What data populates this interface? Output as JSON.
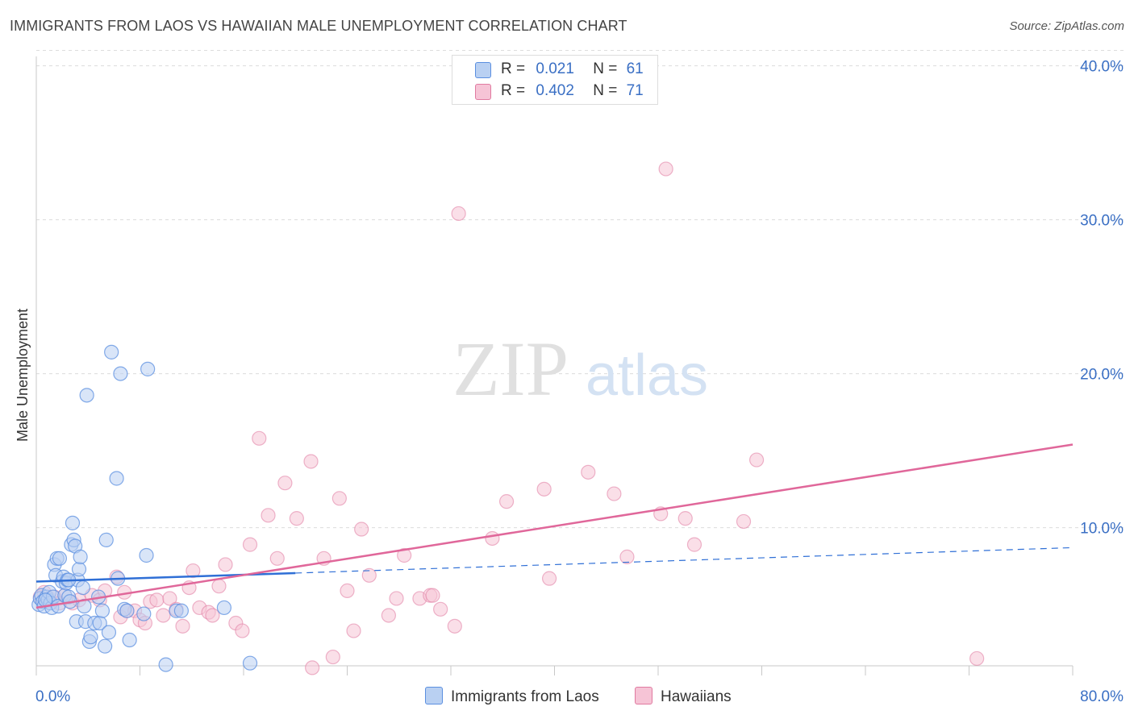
{
  "title": "IMMIGRANTS FROM LAOS VS HAWAIIAN MALE UNEMPLOYMENT CORRELATION CHART",
  "source": "Source: ZipAtlas.com",
  "watermark": {
    "zip": "ZIP",
    "atlas": "atlas"
  },
  "legend_top": {
    "rows": [
      {
        "r_label": "R =",
        "r_value": "0.021",
        "n_label": "N =",
        "n_value": "61"
      },
      {
        "r_label": "R =",
        "r_value": "0.402",
        "n_label": "N =",
        "n_value": "71"
      }
    ]
  },
  "legend_bottom": {
    "series1": "Immigrants from Laos",
    "series2": "Hawaiians"
  },
  "axis": {
    "x_min_label": "0.0%",
    "x_max_label": "80.0%",
    "ylabel": "Male Unemployment"
  },
  "colors": {
    "blue": "#5b8fe0",
    "blue_fill": "#b9d0f2",
    "pink": "#e07aa0",
    "pink_fill": "#f6c4d6",
    "blue_line": "#2f6fd6",
    "pink_line": "#e0679a",
    "tick_text": "#3a6fc4"
  },
  "chart_data": {
    "type": "scatter",
    "xlim": [
      0,
      80
    ],
    "ylim": [
      0,
      42
    ],
    "y_ticks": [
      10,
      20,
      30,
      40
    ],
    "y_tick_labels": [
      "10.0%",
      "20.0%",
      "30.0%",
      "40.0%"
    ],
    "x_tick_labels": [
      "0.0%",
      "80.0%"
    ],
    "grid": true,
    "legend_position": "top-center",
    "series": [
      {
        "name": "Immigrants from Laos",
        "r": 0.021,
        "n": 61,
        "trend": {
          "x0": 0,
          "y0": 6.5,
          "x1": 80,
          "y1": 8.7,
          "solid_until": 20
        },
        "points": [
          [
            0.2,
            5.0
          ],
          [
            0.3,
            5.4
          ],
          [
            0.4,
            5.6
          ],
          [
            0.5,
            5.2
          ],
          [
            0.6,
            4.9
          ],
          [
            0.8,
            5.5
          ],
          [
            0.9,
            5.3
          ],
          [
            1.0,
            5.8
          ],
          [
            1.1,
            5.1
          ],
          [
            1.2,
            4.8
          ],
          [
            1.3,
            5.5
          ],
          [
            1.4,
            7.6
          ],
          [
            1.5,
            6.9
          ],
          [
            1.6,
            8.0
          ],
          [
            1.7,
            4.9
          ],
          [
            1.8,
            8.0
          ],
          [
            2.0,
            6.5
          ],
          [
            2.1,
            6.8
          ],
          [
            2.2,
            5.6
          ],
          [
            2.3,
            6.4
          ],
          [
            2.4,
            6.6
          ],
          [
            2.5,
            5.5
          ],
          [
            2.6,
            5.2
          ],
          [
            2.7,
            8.9
          ],
          [
            2.8,
            10.3
          ],
          [
            2.9,
            9.2
          ],
          [
            3.0,
            8.8
          ],
          [
            3.1,
            3.9
          ],
          [
            3.2,
            6.6
          ],
          [
            3.3,
            7.3
          ],
          [
            3.4,
            8.1
          ],
          [
            3.6,
            6.1
          ],
          [
            3.7,
            4.9
          ],
          [
            3.8,
            3.9
          ],
          [
            3.9,
            18.6
          ],
          [
            4.1,
            2.6
          ],
          [
            4.2,
            2.9
          ],
          [
            4.5,
            3.8
          ],
          [
            4.8,
            5.5
          ],
          [
            4.9,
            3.8
          ],
          [
            5.1,
            4.6
          ],
          [
            5.3,
            2.3
          ],
          [
            5.4,
            9.2
          ],
          [
            5.6,
            3.2
          ],
          [
            5.8,
            21.4
          ],
          [
            6.3,
            6.7
          ],
          [
            6.2,
            13.2
          ],
          [
            6.5,
            20.0
          ],
          [
            6.8,
            4.7
          ],
          [
            7.0,
            4.6
          ],
          [
            7.2,
            2.7
          ],
          [
            8.3,
            4.4
          ],
          [
            8.5,
            8.2
          ],
          [
            8.6,
            20.3
          ],
          [
            10.0,
            1.1
          ],
          [
            10.8,
            4.6
          ],
          [
            11.2,
            4.6
          ],
          [
            14.5,
            4.8
          ],
          [
            16.5,
            1.2
          ],
          [
            2.5,
            6.6
          ],
          [
            0.7,
            5.3
          ]
        ]
      },
      {
        "name": "Hawaiians",
        "r": 0.402,
        "n": 71,
        "trend": {
          "x0": 0,
          "y0": 4.8,
          "x1": 80,
          "y1": 15.4
        },
        "points": [
          [
            0.3,
            5.5
          ],
          [
            0.6,
            5.8
          ],
          [
            1.0,
            5.4
          ],
          [
            1.4,
            5.5
          ],
          [
            1.8,
            5.1
          ],
          [
            2.2,
            5.6
          ],
          [
            2.8,
            5.1
          ],
          [
            3.3,
            5.3
          ],
          [
            4.3,
            5.6
          ],
          [
            4.9,
            5.3
          ],
          [
            5.3,
            5.9
          ],
          [
            6.2,
            6.8
          ],
          [
            6.5,
            4.2
          ],
          [
            6.8,
            5.8
          ],
          [
            7.0,
            4.6
          ],
          [
            7.6,
            4.6
          ],
          [
            8.0,
            4.0
          ],
          [
            8.4,
            3.8
          ],
          [
            8.8,
            5.2
          ],
          [
            9.3,
            5.3
          ],
          [
            9.8,
            4.3
          ],
          [
            10.3,
            5.4
          ],
          [
            10.8,
            4.7
          ],
          [
            11.3,
            3.6
          ],
          [
            11.8,
            6.1
          ],
          [
            12.1,
            7.2
          ],
          [
            12.6,
            4.8
          ],
          [
            13.3,
            4.5
          ],
          [
            13.6,
            4.3
          ],
          [
            14.1,
            6.2
          ],
          [
            14.6,
            7.6
          ],
          [
            15.4,
            3.8
          ],
          [
            15.9,
            3.3
          ],
          [
            16.5,
            8.9
          ],
          [
            17.2,
            15.8
          ],
          [
            17.9,
            10.8
          ],
          [
            18.6,
            8.0
          ],
          [
            19.2,
            12.9
          ],
          [
            20.1,
            10.6
          ],
          [
            21.2,
            14.3
          ],
          [
            21.3,
            0.9
          ],
          [
            22.2,
            8.0
          ],
          [
            22.9,
            1.6
          ],
          [
            23.4,
            11.9
          ],
          [
            24.0,
            5.9
          ],
          [
            24.5,
            3.3
          ],
          [
            25.1,
            9.9
          ],
          [
            25.7,
            6.9
          ],
          [
            27.2,
            4.3
          ],
          [
            27.8,
            5.4
          ],
          [
            28.4,
            8.2
          ],
          [
            29.6,
            5.4
          ],
          [
            30.4,
            5.6
          ],
          [
            30.6,
            5.6
          ],
          [
            31.2,
            4.7
          ],
          [
            32.6,
            30.4
          ],
          [
            32.3,
            3.6
          ],
          [
            35.2,
            9.3
          ],
          [
            36.3,
            11.7
          ],
          [
            39.2,
            12.5
          ],
          [
            39.6,
            6.7
          ],
          [
            42.6,
            13.6
          ],
          [
            44.6,
            12.2
          ],
          [
            45.6,
            8.1
          ],
          [
            48.2,
            10.9
          ],
          [
            48.6,
            33.3
          ],
          [
            50.1,
            10.6
          ],
          [
            50.8,
            8.9
          ],
          [
            54.6,
            10.4
          ],
          [
            55.6,
            14.4
          ],
          [
            72.6,
            1.5
          ]
        ]
      }
    ]
  }
}
